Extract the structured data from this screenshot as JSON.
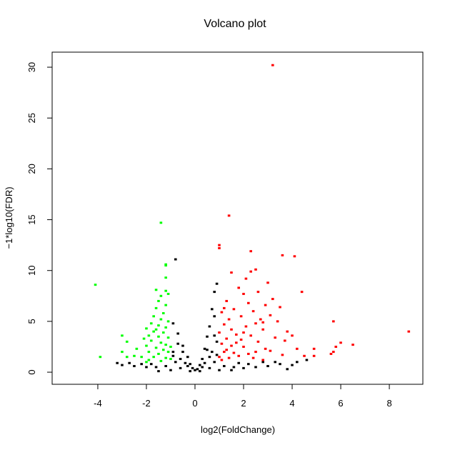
{
  "chart_data": {
    "type": "scatter",
    "title": "Volcano plot",
    "x_label": "log2(FoldChange)",
    "y_label": "−1*log10(FDR)",
    "xlim": [
      -5.88,
      9.38
    ],
    "ylim": [
      -1.19,
      31.48
    ],
    "xticks": [
      -4,
      -2,
      0,
      2,
      4,
      6,
      8
    ],
    "yticks": [
      0,
      5,
      10,
      15,
      20,
      25,
      30
    ],
    "grid": false,
    "series": [
      {
        "color": "#000000",
        "x": [
          -0.8,
          0.9,
          0.8,
          0.7,
          0.8,
          -0.9,
          0.6,
          -0.7,
          0.5,
          0.9,
          -0.5,
          0.4,
          -0.9,
          0.7,
          -0.3,
          0.3,
          -0.6,
          0.6,
          -0.2,
          0.2,
          -0.4,
          0.4,
          0,
          -0.1,
          0.1,
          -0.8,
          0.8,
          -1.2,
          1.2,
          -1.6,
          1.6,
          -2.0,
          2.0,
          -2.5,
          2.5,
          -3.0,
          3.0,
          -3.2,
          3.5,
          -2.7,
          4.0,
          4.6,
          4.2,
          3.8,
          -1.0,
          1.0,
          -1.5,
          1.5,
          -0.6,
          0.6,
          -0.5,
          0.5,
          -0.7,
          0.8,
          -0.3,
          0.3,
          -1.8,
          1.8,
          2.2,
          -2.2,
          2.8,
          3.3,
          -0.9,
          0.9,
          0.2,
          -0.2
        ],
        "values": [
          11.1,
          8.7,
          7.9,
          6.2,
          5.5,
          4.8,
          4.5,
          3.8,
          3.5,
          3.0,
          2.6,
          2.3,
          2.0,
          2.0,
          1.5,
          1.3,
          1.3,
          1.5,
          0.8,
          0.7,
          0.9,
          0.9,
          0.2,
          0.4,
          0.3,
          1.0,
          1.0,
          0.6,
          0.6,
          0.5,
          0.5,
          0.5,
          0.4,
          0.6,
          0.5,
          0.7,
          0.6,
          0.9,
          0.8,
          0.9,
          0.7,
          1.2,
          1.0,
          0.3,
          0.2,
          0.2,
          0.1,
          0.2,
          0.4,
          0.4,
          2.0,
          2.2,
          2.8,
          3.6,
          0.6,
          0.5,
          0.8,
          0.9,
          0.8,
          0.8,
          1.0,
          1.0,
          1.6,
          1.7,
          0.1,
          0.1
        ]
      },
      {
        "color": "#00ff00",
        "x": [
          -4.1,
          -3.9,
          -1.4,
          -1.2,
          -1.2,
          -1.2,
          -1.6,
          -1.2,
          -1.4,
          -1.1,
          -1.5,
          -1.6,
          -1.2,
          -1.3,
          -1.7,
          -1.4,
          -1.1,
          -1.8,
          -1.5,
          -1.2,
          -2.0,
          -1.7,
          -1.3,
          -1.9,
          -1.5,
          -1.1,
          -3.0,
          -2.8,
          -2.1,
          -1.8,
          -1.4,
          -1.2,
          -2.0,
          -1.6,
          -1.3,
          -2.4,
          -3.0,
          -1.9,
          -1.1,
          -1.5,
          -2.5,
          -2.2,
          -1.7,
          -1.2,
          -2.8,
          -1.9,
          -1.4,
          -1.0,
          -2.0,
          -1.6,
          -1.0
        ],
        "values": [
          8.6,
          1.5,
          14.7,
          10.6,
          10.5,
          9.3,
          8.1,
          8.0,
          7.5,
          7.7,
          7.0,
          6.3,
          6.6,
          5.8,
          5.5,
          5.2,
          5.0,
          4.8,
          4.6,
          4.4,
          4.3,
          4.0,
          3.9,
          3.6,
          3.5,
          3.4,
          3.6,
          3.0,
          3.3,
          3.1,
          2.9,
          2.7,
          2.6,
          2.4,
          2.2,
          2.3,
          2.0,
          2.0,
          2.0,
          1.8,
          1.6,
          1.5,
          1.5,
          1.4,
          1.5,
          1.2,
          1.1,
          1.3,
          1.0,
          4.2,
          2.5
        ]
      },
      {
        "color": "#ff0000",
        "x": [
          3.2,
          1.4,
          1.0,
          1.0,
          2.3,
          3.6,
          4.1,
          2.5,
          2.3,
          1.5,
          2.1,
          3.0,
          4.4,
          1.8,
          2.0,
          2.6,
          3.2,
          1.3,
          2.2,
          2.9,
          3.5,
          1.6,
          2.4,
          1.1,
          3.1,
          1.9,
          2.7,
          3.4,
          5.7,
          8.8,
          1.2,
          2.1,
          1.5,
          2.8,
          3.8,
          1.0,
          1.7,
          2.3,
          4.0,
          3.3,
          1.3,
          1.9,
          2.6,
          3.7,
          6.0,
          6.5,
          5.8,
          1.1,
          1.5,
          2.0,
          2.9,
          4.2,
          4.9,
          3.1,
          5.7,
          5.6,
          1.2,
          1.6,
          2.2,
          2.5,
          3.6,
          4.5,
          4.9,
          1.0,
          1.4,
          1.8,
          2.4,
          2.8,
          1.1,
          1.3,
          1.7,
          2.0,
          2.5,
          1.4,
          1.2,
          2.8
        ],
        "values": [
          30.2,
          15.4,
          12.5,
          12.2,
          11.9,
          11.5,
          11.4,
          10.1,
          9.9,
          9.8,
          9.2,
          8.8,
          7.9,
          8.3,
          7.7,
          7.9,
          7.2,
          7.0,
          6.8,
          6.6,
          6.4,
          6.2,
          6.0,
          5.9,
          5.6,
          5.5,
          5.2,
          5.0,
          5.0,
          4.0,
          4.7,
          4.5,
          4.2,
          4.2,
          4.0,
          3.9,
          3.7,
          3.6,
          3.6,
          3.4,
          3.3,
          3.2,
          3.0,
          3.1,
          2.9,
          2.7,
          2.5,
          2.8,
          2.6,
          2.5,
          2.3,
          2.3,
          2.3,
          2.1,
          2.0,
          1.8,
          2.0,
          1.9,
          1.8,
          2.0,
          1.7,
          1.6,
          1.6,
          1.5,
          1.4,
          1.6,
          1.4,
          1.2,
          1.2,
          2.2,
          2.9,
          3.9,
          4.8,
          5.2,
          6.3,
          4.9
        ]
      }
    ]
  }
}
